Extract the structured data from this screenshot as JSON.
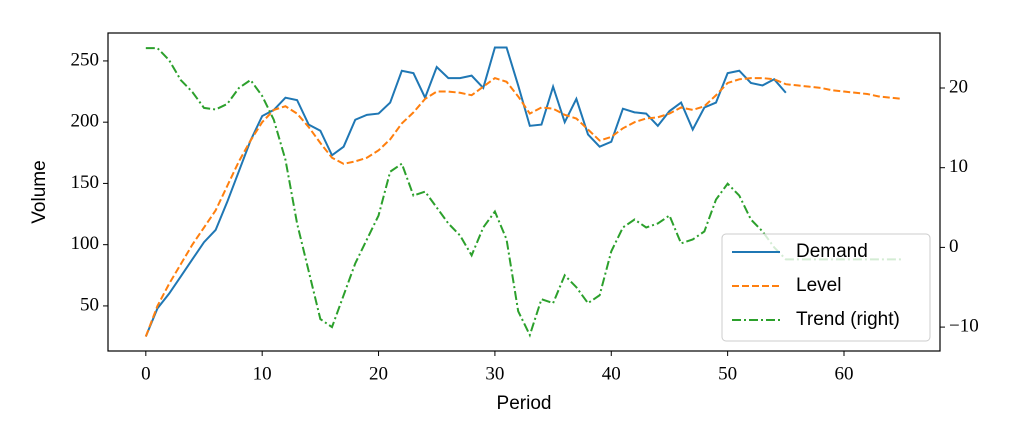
{
  "chart_data": {
    "type": "line",
    "xlabel": "Period",
    "ylabel": "Volume",
    "xlim": [
      -3.25,
      68.25
    ],
    "xticks": [
      0,
      10,
      20,
      30,
      40,
      50,
      60
    ],
    "ylim": [
      13.2,
      272.8
    ],
    "yticks": [
      50,
      100,
      150,
      200,
      250
    ],
    "y2lim": [
      -13,
      26.9
    ],
    "y2ticks": [
      {
        "value": -10,
        "label": "−10"
      },
      0,
      10,
      20
    ],
    "legend": "lower right",
    "series": [
      {
        "name": "Demand",
        "color": "#1f77b4",
        "linestyle": "solid",
        "x": [
          0,
          1,
          2,
          3,
          4,
          5,
          6,
          7,
          8,
          9,
          10,
          11,
          12,
          13,
          14,
          15,
          16,
          17,
          18,
          19,
          20,
          21,
          22,
          23,
          24,
          25,
          26,
          27,
          28,
          29,
          30,
          31,
          32,
          33,
          34,
          35,
          36,
          37,
          38,
          39,
          40,
          41,
          42,
          43,
          44,
          45,
          46,
          47,
          48,
          49,
          50,
          51,
          52,
          53,
          54,
          55
        ],
        "values": [
          25,
          48,
          60,
          74,
          88,
          102,
          112,
          135,
          160,
          185,
          205,
          210,
          220,
          218,
          198,
          193,
          173,
          180,
          202,
          206,
          207,
          216,
          242,
          240,
          220,
          245,
          236,
          236,
          238,
          228,
          261,
          261,
          230,
          197,
          198,
          229,
          200,
          219,
          190,
          180,
          184,
          211,
          208,
          207,
          197,
          209,
          216,
          194,
          212,
          216,
          240,
          242,
          232,
          230,
          235,
          224
        ]
      },
      {
        "name": "Level",
        "color": "#ff7f0e",
        "linestyle": "dashed",
        "x": [
          0,
          1,
          2,
          3,
          4,
          5,
          6,
          7,
          8,
          9,
          10,
          11,
          12,
          13,
          14,
          15,
          16,
          17,
          18,
          19,
          20,
          21,
          22,
          23,
          24,
          25,
          26,
          27,
          28,
          29,
          30,
          31,
          32,
          33,
          34,
          35,
          36,
          37,
          38,
          39,
          40,
          41,
          42,
          43,
          44,
          45,
          46,
          47,
          48,
          49,
          50,
          51,
          52,
          53,
          54,
          55,
          56,
          57,
          58,
          59,
          60,
          61,
          62,
          63,
          64,
          65
        ],
        "values": [
          25,
          50,
          68,
          84,
          100,
          114,
          128,
          148,
          168,
          185,
          200,
          210,
          213,
          207,
          196,
          183,
          171,
          166,
          168,
          171,
          177,
          186,
          199,
          208,
          219,
          225,
          225,
          224,
          222,
          229,
          236,
          233,
          221,
          207,
          212,
          211,
          206,
          203,
          194,
          185,
          188,
          195,
          200,
          203,
          204,
          207,
          212,
          210,
          213,
          222,
          232,
          235,
          236,
          236,
          235,
          231,
          230,
          229,
          228,
          226,
          225,
          224,
          223,
          221,
          220,
          219
        ]
      },
      {
        "name": "Trend (right)",
        "color": "#2ca02c",
        "linestyle": "dashdot",
        "axis": "y2",
        "x": [
          0,
          1,
          2,
          3,
          4,
          5,
          6,
          7,
          8,
          9,
          10,
          11,
          12,
          13,
          14,
          15,
          16,
          17,
          18,
          19,
          20,
          21,
          22,
          23,
          24,
          25,
          26,
          27,
          28,
          29,
          30,
          31,
          32,
          33,
          34,
          35,
          36,
          37,
          38,
          39,
          40,
          41,
          42,
          43,
          44,
          45,
          46,
          47,
          48,
          49,
          50,
          51,
          52,
          53,
          54,
          55,
          56,
          57,
          58,
          59,
          60,
          61,
          62,
          63,
          64,
          65
        ],
        "values": [
          25,
          25,
          23.5,
          21,
          19.5,
          17.5,
          17.3,
          18,
          20,
          21,
          19,
          16,
          11,
          3,
          -3,
          -9,
          -10,
          -6,
          -2,
          1,
          4,
          9.5,
          10.5,
          6.5,
          7,
          5,
          3,
          1.5,
          -1,
          2.5,
          4.5,
          1,
          -8,
          -11,
          -6.5,
          -7,
          -3.5,
          -5,
          -7,
          -6,
          -0.5,
          2.5,
          3.5,
          2.5,
          3,
          4,
          0.5,
          1,
          2,
          6,
          8,
          6.5,
          3.5,
          2,
          0,
          -1.5,
          -1.5,
          -1.5,
          -1.5,
          -1.5,
          -1.5,
          -1.5,
          -1.5,
          -1.5,
          -1.5,
          -1.5
        ]
      }
    ]
  }
}
